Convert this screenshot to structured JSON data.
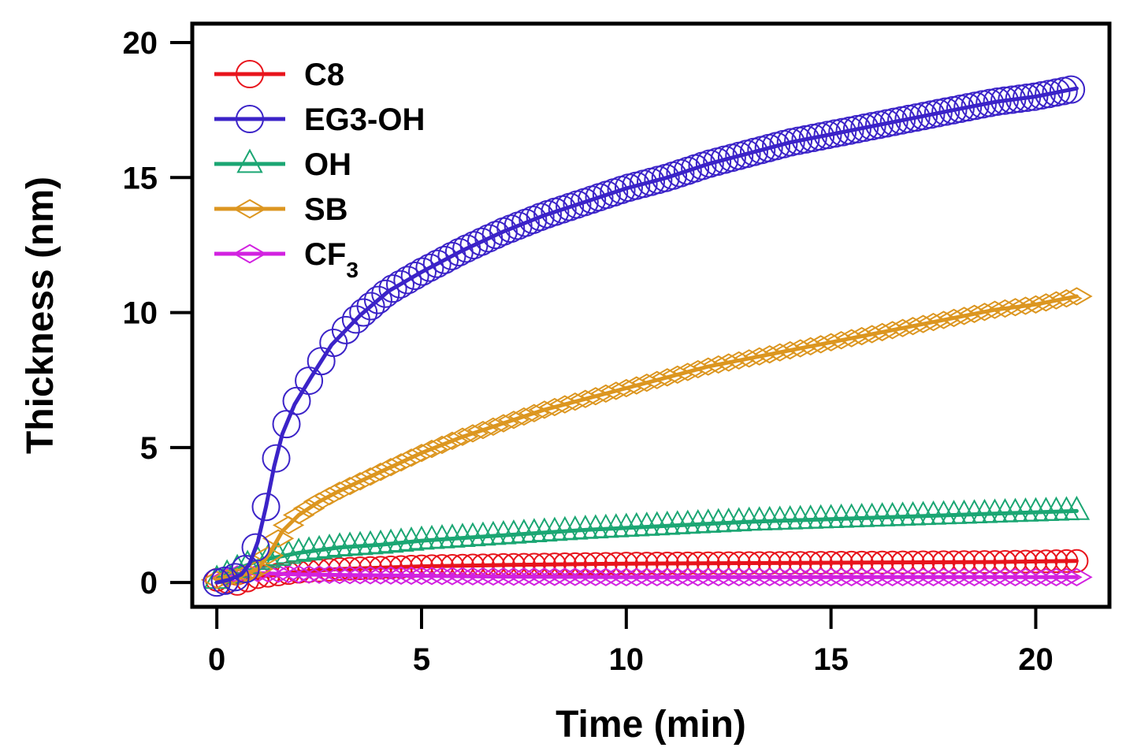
{
  "chart_data": {
    "type": "line",
    "title": "",
    "xlabel": "Time (min)",
    "ylabel": "Thickness (nm)",
    "xlim": [
      -0.6,
      21.8
    ],
    "ylim": [
      -0.9,
      20.7
    ],
    "xticks": [
      0,
      5,
      10,
      15,
      20
    ],
    "yticks": [
      0,
      5,
      10,
      15,
      20
    ],
    "grid": false,
    "legend_position": "top-left",
    "series": [
      {
        "name": "C8",
        "label_main": "C8",
        "label_sub": "",
        "color": "#e8141c",
        "marker": "circle",
        "x": [
          0,
          0.5,
          1,
          2,
          3,
          5,
          7,
          10,
          13,
          16,
          19,
          21
        ],
        "y": [
          0.1,
          -0.05,
          0.2,
          0.4,
          0.5,
          0.6,
          0.65,
          0.7,
          0.72,
          0.74,
          0.76,
          0.8
        ]
      },
      {
        "name": "EG3-OH",
        "label_main": "EG3-OH",
        "label_sub": "",
        "color": "#3b23c8",
        "marker": "circle",
        "x": [
          0,
          0.3,
          0.6,
          0.8,
          1.0,
          1.2,
          1.4,
          1.6,
          1.9,
          2.3,
          2.8,
          3.5,
          4.2,
          5,
          6,
          7,
          8,
          9,
          10,
          11,
          12,
          13,
          14,
          15,
          16,
          17,
          18,
          19,
          20,
          21
        ],
        "y": [
          0,
          0.1,
          0.3,
          0.7,
          1.5,
          2.8,
          4.3,
          5.5,
          6.6,
          7.6,
          8.8,
          9.9,
          10.8,
          11.5,
          12.3,
          13.0,
          13.6,
          14.1,
          14.6,
          15.0,
          15.5,
          15.9,
          16.3,
          16.6,
          16.9,
          17.2,
          17.5,
          17.8,
          18.0,
          18.3
        ]
      },
      {
        "name": "OH",
        "label_main": "OH",
        "label_sub": "",
        "color": "#1ba673",
        "marker": "triangle",
        "x": [
          0,
          0.5,
          1,
          2,
          3,
          4,
          5,
          7,
          9,
          11,
          13,
          15,
          17,
          19,
          21
        ],
        "y": [
          0.1,
          0.5,
          0.8,
          1.1,
          1.3,
          1.4,
          1.55,
          1.75,
          1.95,
          2.1,
          2.25,
          2.35,
          2.45,
          2.55,
          2.65
        ]
      },
      {
        "name": "SB",
        "label_main": "SB",
        "label_sub": "",
        "color": "#dc9620",
        "marker": "diamond",
        "x": [
          0,
          0.5,
          1,
          1.3,
          1.6,
          2,
          2.5,
          3,
          4,
          5,
          6,
          7,
          8,
          9,
          10,
          11,
          12,
          13,
          14,
          15,
          16,
          17,
          18,
          19,
          20,
          21
        ],
        "y": [
          0.1,
          0.2,
          0.5,
          1.1,
          1.9,
          2.5,
          3.0,
          3.4,
          4.1,
          4.8,
          5.4,
          5.9,
          6.4,
          6.8,
          7.2,
          7.6,
          8.0,
          8.3,
          8.6,
          8.9,
          9.2,
          9.5,
          9.8,
          10.1,
          10.3,
          10.6
        ]
      },
      {
        "name": "CF3",
        "label_main": "CF",
        "label_sub": "3",
        "color": "#d222e0",
        "marker": "diamond",
        "x": [
          0,
          0.5,
          1,
          2,
          3,
          5,
          7,
          10,
          13,
          16,
          19,
          21
        ],
        "y": [
          0.1,
          0.3,
          0.35,
          0.3,
          0.28,
          0.25,
          0.22,
          0.2,
          0.2,
          0.2,
          0.2,
          0.2
        ]
      }
    ]
  }
}
